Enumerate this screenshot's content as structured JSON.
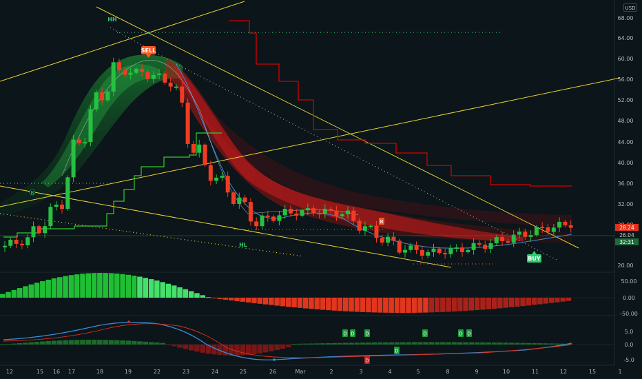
{
  "header": {
    "currency_badge": "USD"
  },
  "price_pane": {
    "y_ticks": [
      "68.00",
      "64.00",
      "60.00",
      "56.00",
      "52.00",
      "48.00",
      "44.00",
      "40.00",
      "36.00",
      "32.00",
      "28.00",
      "20.00"
    ],
    "last_price_tags": [
      "28.24",
      "26.04",
      "32:31"
    ],
    "signals": [
      {
        "label": "SELL",
        "color": "#ff5722"
      },
      {
        "label": "BUY",
        "color": "#2ecc71"
      },
      {
        "label": "HH",
        "color": "#2ecc71"
      },
      {
        "label": "HL",
        "color": "#2ecc71"
      },
      {
        "label": "B",
        "color": "#2ecc71"
      },
      {
        "label": "B",
        "color": "#ff5722"
      }
    ]
  },
  "osc1_pane": {
    "y_ticks": [
      "50.00",
      "0.00",
      "-50.00"
    ]
  },
  "osc2_pane": {
    "y_ticks": [
      "5.0",
      "0.0",
      "-5.0"
    ],
    "markers": [
      "D",
      "D",
      "D",
      "D",
      "D",
      "D",
      "D",
      "D"
    ]
  },
  "x_axis": {
    "ticks": [
      "12",
      "15",
      "16",
      "17",
      "18",
      "19",
      "22",
      "23",
      "24",
      "25",
      "26",
      "Mar",
      "2",
      "3",
      "4",
      "5",
      "8",
      "9",
      "10",
      "11",
      "12",
      "15",
      "1"
    ]
  },
  "chart_data": {
    "type": "candlestick",
    "title": "",
    "xlabel": "",
    "ylabel": "",
    "ylim": [
      20,
      70
    ],
    "x": [
      "12",
      "15",
      "16",
      "17",
      "18",
      "19",
      "22",
      "23",
      "24",
      "25",
      "26",
      "Mar",
      "2",
      "3",
      "4",
      "5",
      "8",
      "9",
      "10",
      "11",
      "12"
    ],
    "close": [
      23.5,
      25,
      31,
      47,
      57,
      57,
      55,
      40,
      34.5,
      28.5,
      30,
      30.5,
      30,
      26.5,
      23.5,
      22.5,
      23,
      24,
      25.5,
      27,
      28
    ],
    "last_price": 26.04,
    "colors": {
      "up": "#26c140",
      "down": "#f23c22",
      "resistance": "#d40000",
      "support": "#32cd32",
      "trend": "#e8d632"
    }
  }
}
